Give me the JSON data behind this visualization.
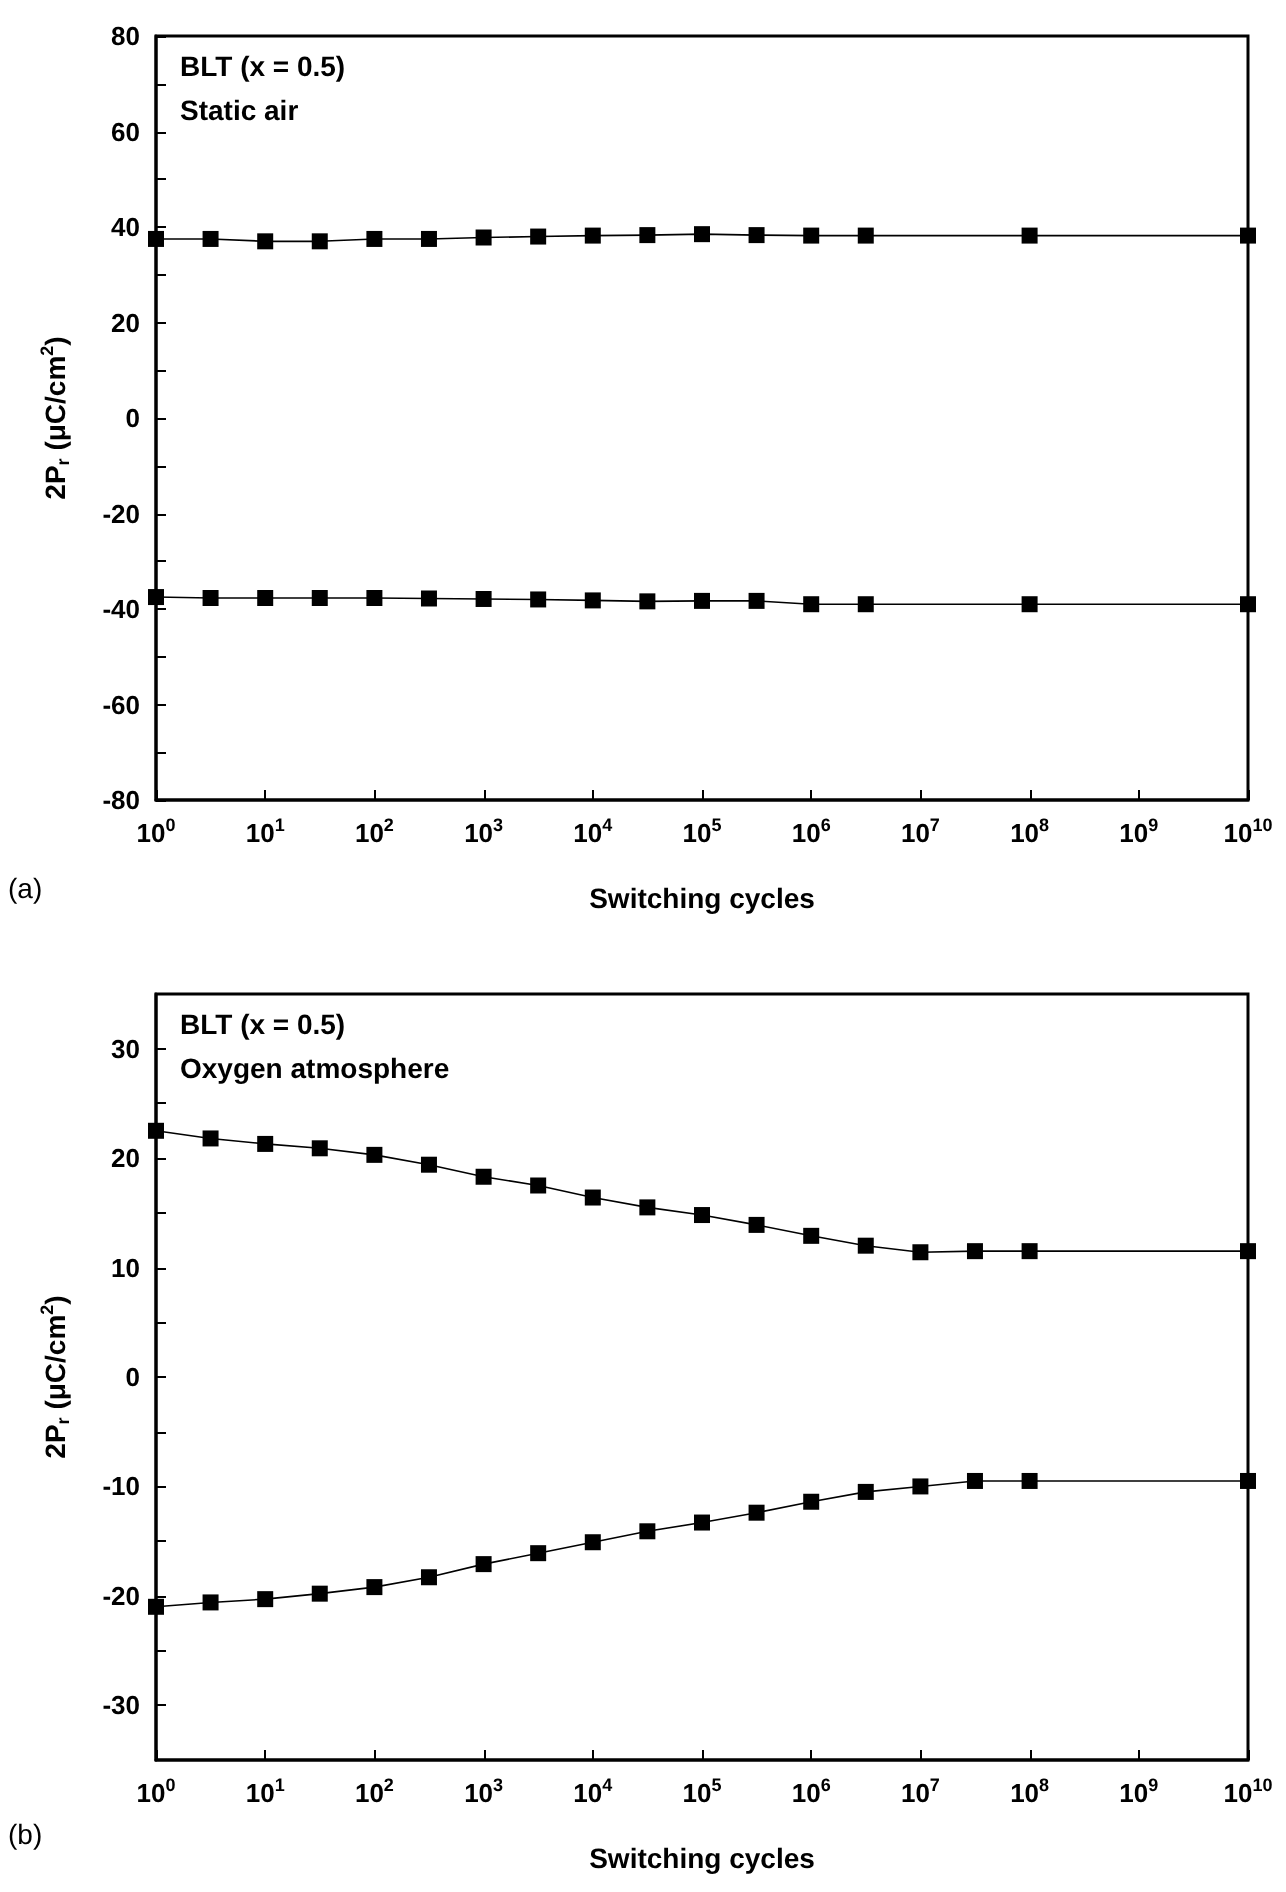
{
  "chart_data": [
    {
      "type": "line",
      "xlabel": "Switching cycles",
      "ylabel": "2P$_{r}$ (μC/cm$^{2}$)",
      "annotations": [
        "BLT (x = 0.5)",
        "Static air",
        "(a)"
      ],
      "log": "x",
      "marker": "square",
      "line_style": "solid",
      "xlim": [
        1,
        10000000000
      ],
      "xticks": [
        {
          "value": 1,
          "label": "10$^{0}$"
        },
        {
          "value": 10,
          "label": "10$^{1}$"
        },
        {
          "value": 100,
          "label": "10$^{2}$"
        },
        {
          "value": 1000,
          "label": "10$^{3}$"
        },
        {
          "value": 10000,
          "label": "10$^{4}$"
        },
        {
          "value": 100000,
          "label": "10$^{5}$"
        },
        {
          "value": 1000000,
          "label": "10$^{6}$"
        },
        {
          "value": 10000000,
          "label": "10$^{7}$"
        },
        {
          "value": 100000000,
          "label": "10$^{8}$"
        },
        {
          "value": 1000000000,
          "label": "10$^{9}$"
        },
        {
          "value": 10000000000,
          "label": "10$^{10}$"
        }
      ],
      "ylim": [
        -80,
        80
      ],
      "yticks": [
        -80,
        {
          "value": -70,
          "label": null
        },
        -60,
        {
          "value": -50,
          "label": null
        },
        -40,
        {
          "value": -30,
          "label": null
        },
        -20,
        {
          "value": -10,
          "label": null
        },
        0,
        {
          "value": 10,
          "label": null
        },
        20,
        {
          "value": 30,
          "label": null
        },
        40,
        {
          "value": 50,
          "label": null
        },
        60,
        {
          "value": 70,
          "label": null
        },
        80
      ],
      "x": [
        1,
        3.16,
        10,
        31.6,
        100,
        316,
        1000,
        3160,
        10000,
        31600,
        100000,
        316000,
        1000000,
        3160000,
        100000000,
        10000000000
      ],
      "series": [
        {
          "color": "#000000",
          "values": [
            37.5,
            37.5,
            37,
            37,
            37.5,
            37.5,
            37.8,
            38,
            38.2,
            38.3,
            38.5,
            38.3,
            38.2,
            38.2,
            38.2,
            38.2
          ]
        },
        {
          "color": "#000000",
          "values": [
            -37.5,
            -37.7,
            -37.7,
            -37.7,
            -37.7,
            -37.8,
            -37.9,
            -38,
            -38.2,
            -38.4,
            -38.3,
            -38.3,
            -39,
            -39,
            -39,
            -39
          ]
        }
      ]
    },
    {
      "type": "line",
      "xlabel": "Switching cycles",
      "ylabel": "2P$_{r}$ (μC/cm$^{2}$)",
      "annotations": [
        "BLT (x = 0.5)",
        "Oxygen atmosphere",
        "(b)"
      ],
      "log": "x",
      "marker": "square",
      "line_style": "solid",
      "xlim": [
        1,
        10000000000
      ],
      "xticks": [
        {
          "value": 1,
          "label": "10$^{0}$"
        },
        {
          "value": 10,
          "label": "10$^{1}$"
        },
        {
          "value": 100,
          "label": "10$^{2}$"
        },
        {
          "value": 1000,
          "label": "10$^{3}$"
        },
        {
          "value": 10000,
          "label": "10$^{4}$"
        },
        {
          "value": 100000,
          "label": "10$^{5}$"
        },
        {
          "value": 1000000,
          "label": "10$^{6}$"
        },
        {
          "value": 10000000,
          "label": "10$^{7}$"
        },
        {
          "value": 100000000,
          "label": "10$^{8}$"
        },
        {
          "value": 1000000000,
          "label": "10$^{9}$"
        },
        {
          "value": 10000000000,
          "label": "10$^{10}$"
        }
      ],
      "ylim": [
        -35,
        35
      ],
      "yticks": [
        -30,
        {
          "value": -25,
          "label": null
        },
        -20,
        {
          "value": -15,
          "label": null
        },
        -10,
        {
          "value": -5,
          "label": null
        },
        0,
        {
          "value": 5,
          "label": null
        },
        10,
        {
          "value": 15,
          "label": null
        },
        20,
        {
          "value": 25,
          "label": null
        },
        30
      ],
      "x": [
        1,
        3.16,
        10,
        31.6,
        100,
        316,
        1000,
        3160,
        10000,
        31600,
        100000,
        316000,
        1000000,
        3160000,
        10000000,
        31600000,
        100000000,
        10000000000
      ],
      "series": [
        {
          "color": "#000000",
          "values": [
            22.5,
            21.8,
            21.3,
            20.9,
            20.3,
            19.4,
            18.3,
            17.5,
            16.4,
            15.5,
            14.8,
            13.9,
            12.9,
            12.0,
            11.4,
            11.5,
            11.5,
            11.5
          ]
        },
        {
          "color": "#000000",
          "values": [
            -21.0,
            -20.6,
            -20.3,
            -19.8,
            -19.2,
            -18.3,
            -17.1,
            -16.1,
            -15.1,
            -14.1,
            -13.3,
            -12.4,
            -11.4,
            -10.5,
            -10.0,
            -9.5,
            -9.5,
            -9.5
          ]
        }
      ]
    }
  ]
}
